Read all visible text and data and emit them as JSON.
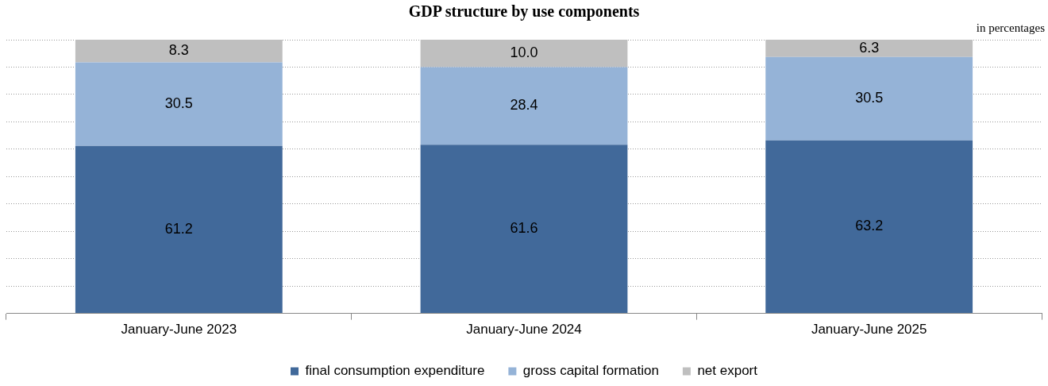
{
  "chart_data": {
    "type": "bar",
    "title": "GDP structure by use components",
    "stacked": true,
    "categories": [
      "January-June 2023",
      "January-June 2024",
      "January-June 2025"
    ],
    "series": [
      {
        "name": "final consumption expenditure",
        "color": "#41699a",
        "values": [
          61.2,
          61.6,
          63.2
        ],
        "value_labels": [
          "61.2",
          "61.6",
          "63.2"
        ]
      },
      {
        "name": "gross capital formation",
        "color": "#95b3d7",
        "values": [
          30.5,
          28.4,
          30.5
        ],
        "value_labels": [
          "30.5",
          "28.4",
          "30.5"
        ]
      },
      {
        "name": "net export",
        "color": "#bfbfbf",
        "values": [
          8.3,
          10.0,
          6.3
        ],
        "value_labels": [
          "8.3",
          "10.0",
          "6.3"
        ]
      }
    ],
    "ylim": [
      0,
      100
    ],
    "yticks": [
      {
        "value": 0,
        "label": null
      },
      {
        "value": 10,
        "label": null
      },
      {
        "value": 20,
        "label": null
      },
      {
        "value": 30,
        "label": null
      },
      {
        "value": 40,
        "label": null
      },
      {
        "value": 50,
        "label": null
      },
      {
        "value": 60,
        "label": null
      },
      {
        "value": 70,
        "label": null
      },
      {
        "value": 80,
        "label": null
      },
      {
        "value": 90,
        "label": null
      },
      {
        "value": 100,
        "label": null
      }
    ],
    "tick_labels": "x",
    "grid": "y",
    "legend": "bottom",
    "annotations": [
      "in percentages"
    ]
  }
}
